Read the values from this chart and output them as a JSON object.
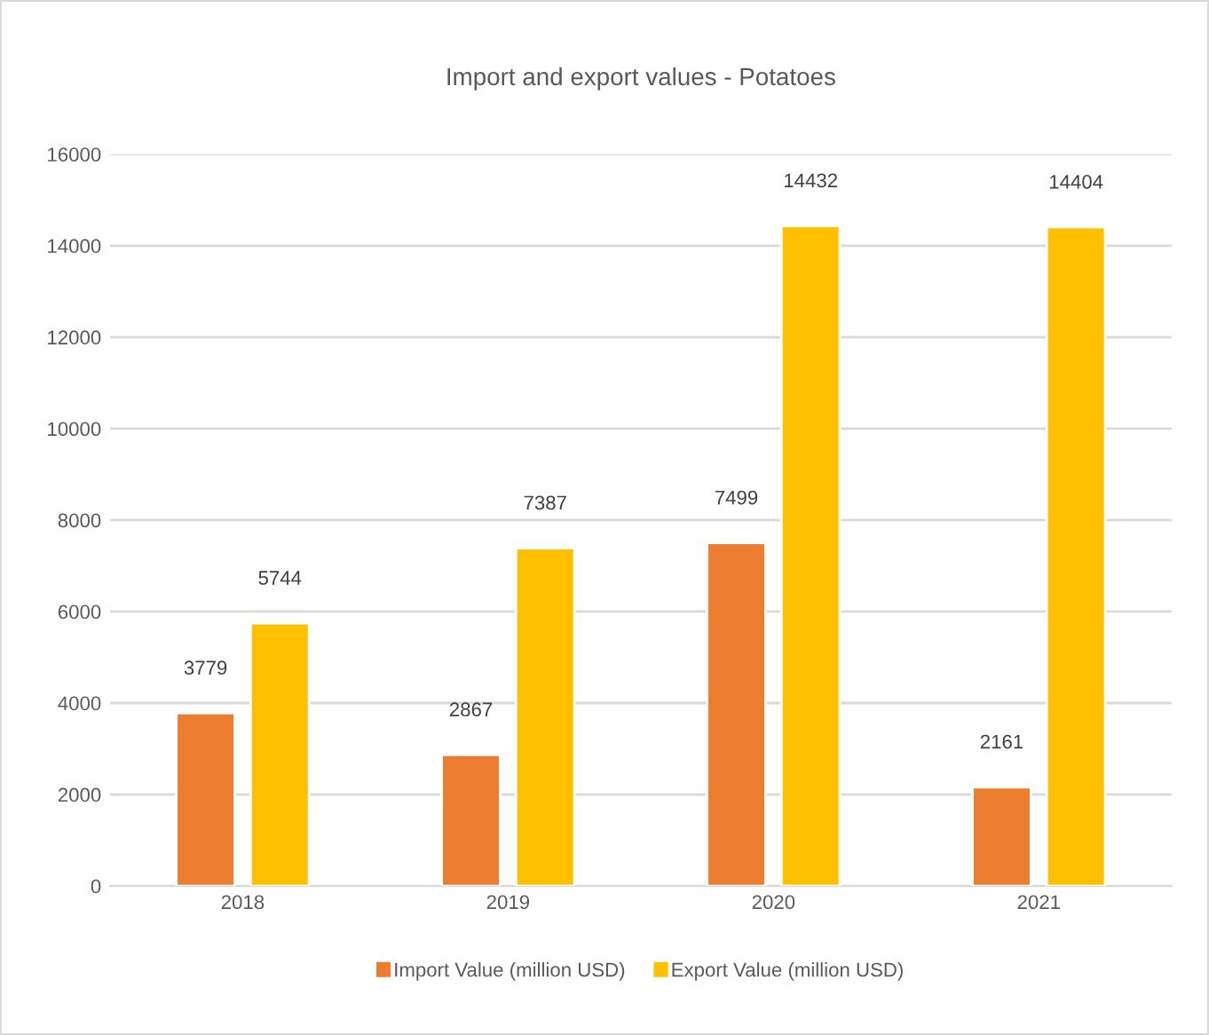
{
  "chart_data": {
    "type": "bar",
    "title": "Import and export values - Potatoes",
    "categories": [
      "2018",
      "2019",
      "2020",
      "2021"
    ],
    "series": [
      {
        "name": "Import Value (million USD)",
        "color": "#ed7d31",
        "values": [
          3779,
          2867,
          7499,
          2161
        ]
      },
      {
        "name": "Export Value (million USD)",
        "color": "#ffc000",
        "values": [
          5744,
          7387,
          14432,
          14404
        ]
      }
    ],
    "ylim": [
      0,
      16000
    ],
    "yticks": [
      0,
      2000,
      4000,
      6000,
      8000,
      10000,
      12000,
      14000,
      16000
    ],
    "grid": "y",
    "legend": "bottom",
    "data_labels": true
  }
}
